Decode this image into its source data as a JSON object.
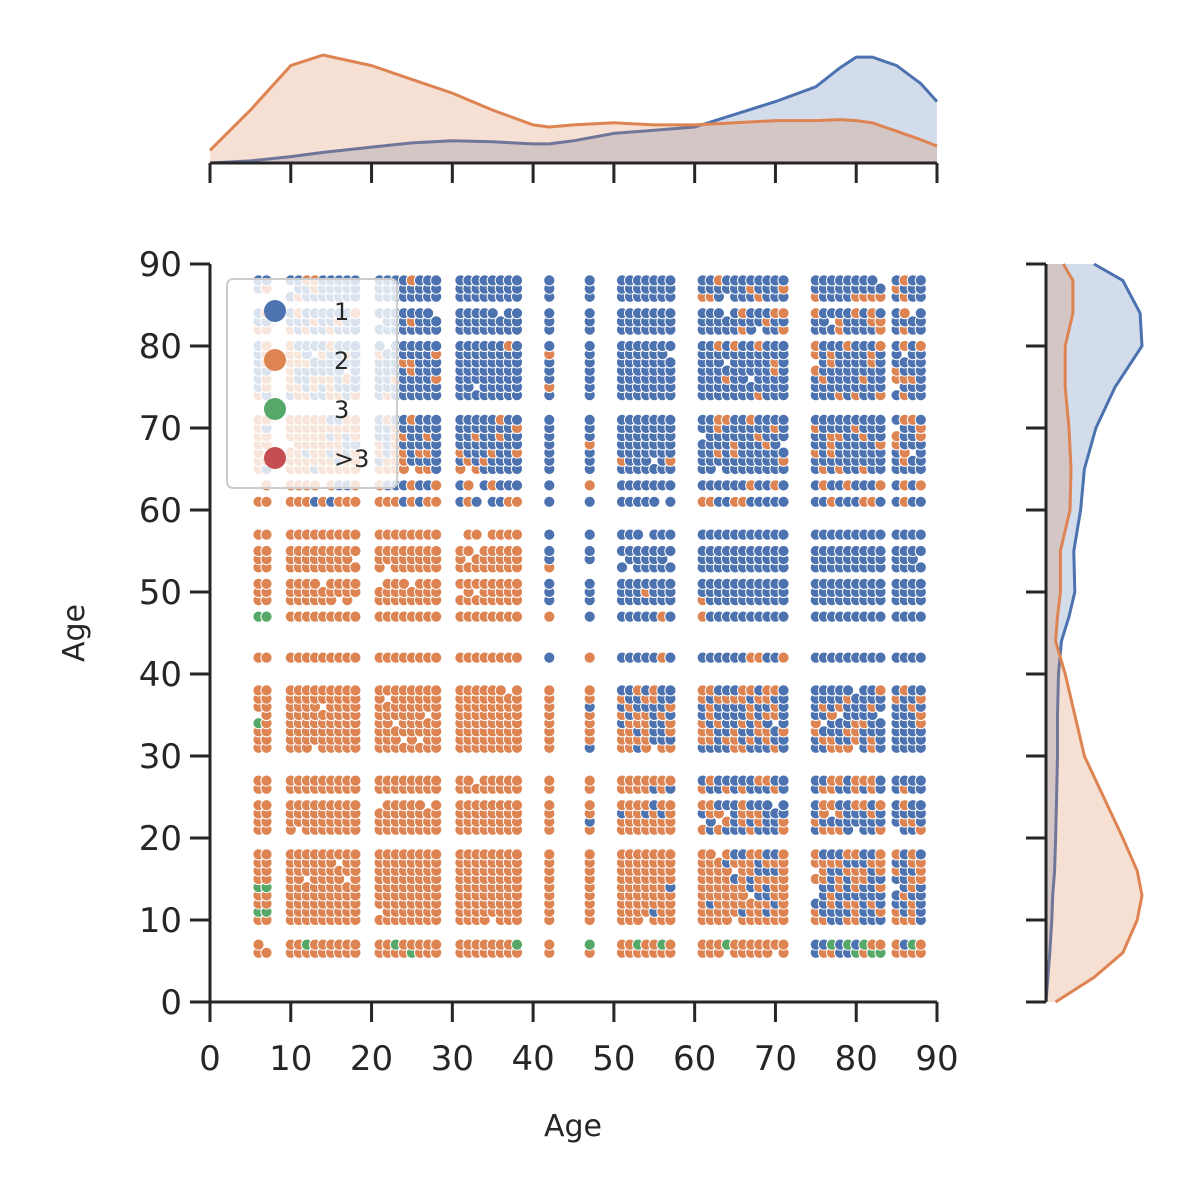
{
  "chart_data": {
    "type": "scatter",
    "title": "",
    "xlabel": "Age",
    "ylabel": "Age",
    "xlim": [
      0,
      90
    ],
    "ylim": [
      0,
      90
    ],
    "xticks": [
      "0",
      "10",
      "20",
      "30",
      "40",
      "50",
      "60",
      "70",
      "80",
      "90"
    ],
    "yticks": [
      "0",
      "10",
      "20",
      "30",
      "40",
      "50",
      "60",
      "70",
      "80",
      "90"
    ],
    "legend": {
      "placement": "top-left",
      "entries": [
        {
          "label": "1",
          "color": "#4c72b0"
        },
        {
          "label": "2",
          "color": "#dd8452"
        },
        {
          "label": "3",
          "color": "#55a868"
        },
        {
          "label": ">3",
          "color": "#c44e52"
        }
      ]
    },
    "marginals": "kde",
    "grid": false,
    "x_distinct_values": [
      6,
      7,
      10,
      11,
      12,
      13,
      14,
      15,
      16,
      17,
      18,
      21,
      22,
      23,
      24,
      25,
      26,
      27,
      28,
      31,
      32,
      33,
      34,
      35,
      36,
      37,
      38,
      42,
      47,
      51,
      52,
      53,
      54,
      55,
      56,
      57,
      61,
      62,
      63,
      64,
      65,
      66,
      67,
      68,
      69,
      70,
      71,
      75,
      76,
      77,
      78,
      79,
      80,
      81,
      82,
      83,
      85,
      86,
      87,
      88
    ],
    "y_distinct_values": [
      6,
      7,
      10,
      11,
      12,
      13,
      14,
      15,
      16,
      17,
      18,
      21,
      22,
      23,
      24,
      26,
      27,
      31,
      32,
      33,
      34,
      35,
      36,
      37,
      38,
      42,
      47,
      49,
      50,
      51,
      53,
      54,
      55,
      57,
      61,
      63,
      65,
      66,
      67,
      68,
      69,
      70,
      71,
      74,
      75,
      76,
      77,
      78,
      79,
      80,
      82,
      83,
      84,
      86,
      87,
      88
    ],
    "top_kde": {
      "x": [
        0,
        5,
        10,
        14,
        20,
        25,
        30,
        35,
        40,
        42,
        45,
        50,
        55,
        60,
        65,
        70,
        75,
        78,
        80,
        82,
        85,
        88,
        90
      ],
      "series": [
        {
          "name": "1",
          "density": [
            0.0,
            0.002,
            0.006,
            0.01,
            0.015,
            0.019,
            0.021,
            0.02,
            0.018,
            0.018,
            0.021,
            0.028,
            0.031,
            0.034,
            0.046,
            0.058,
            0.072,
            0.09,
            0.1,
            0.1,
            0.092,
            0.075,
            0.058
          ]
        },
        {
          "name": "2",
          "density": [
            0.012,
            0.05,
            0.092,
            0.102,
            0.092,
            0.079,
            0.066,
            0.05,
            0.036,
            0.034,
            0.036,
            0.038,
            0.036,
            0.036,
            0.038,
            0.04,
            0.04,
            0.041,
            0.04,
            0.038,
            0.03,
            0.022,
            0.016
          ]
        }
      ]
    },
    "right_kde": {
      "y": [
        0,
        3,
        6,
        10,
        13,
        16,
        20,
        25,
        30,
        35,
        40,
        44,
        47,
        50,
        55,
        60,
        65,
        70,
        75,
        80,
        84,
        88,
        90
      ],
      "series": [
        {
          "name": "1",
          "density": [
            0.0,
            0.002,
            0.004,
            0.006,
            0.007,
            0.009,
            0.01,
            0.011,
            0.012,
            0.012,
            0.013,
            0.016,
            0.024,
            0.03,
            0.029,
            0.036,
            0.04,
            0.052,
            0.072,
            0.1,
            0.098,
            0.08,
            0.05
          ]
        },
        {
          "name": "2",
          "density": [
            0.01,
            0.05,
            0.08,
            0.095,
            0.1,
            0.095,
            0.08,
            0.06,
            0.04,
            0.03,
            0.02,
            0.01,
            0.012,
            0.015,
            0.015,
            0.025,
            0.026,
            0.024,
            0.02,
            0.02,
            0.028,
            0.028,
            0.018
          ]
        }
      ]
    }
  }
}
